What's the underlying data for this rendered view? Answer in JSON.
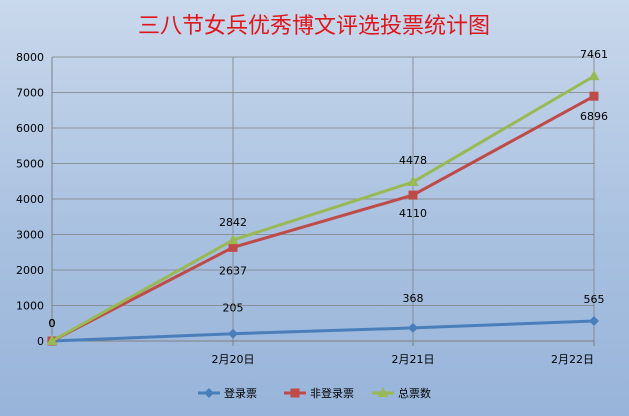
{
  "chart_data": {
    "type": "line",
    "title": "三八节女兵优秀博文评选投票统计图",
    "xlabel": "",
    "ylabel": "",
    "categories": [
      "",
      "2月20日",
      "2月21日",
      "2月22日"
    ],
    "ylim": [
      0,
      8000
    ],
    "yticks": [
      0,
      1000,
      2000,
      3000,
      4000,
      5000,
      6000,
      7000,
      8000
    ],
    "grid": true,
    "legend_position": "bottom",
    "series": [
      {
        "name": "登录票",
        "values": [
          0,
          205,
          368,
          565
        ],
        "labels": [
          "0",
          "205",
          "368",
          "565"
        ],
        "color": "#4a7ebb",
        "marker": "diamond"
      },
      {
        "name": "非登录票",
        "values": [
          0,
          2637,
          4110,
          6896
        ],
        "labels": [
          "0",
          "2637",
          "4110",
          "6896"
        ],
        "color": "#be4b48",
        "marker": "square"
      },
      {
        "name": "总票数",
        "values": [
          0,
          2842,
          4478,
          7461
        ],
        "labels": [
          "0",
          "2842",
          "4478",
          "7461"
        ],
        "color": "#98b954",
        "marker": "triangle"
      }
    ]
  }
}
